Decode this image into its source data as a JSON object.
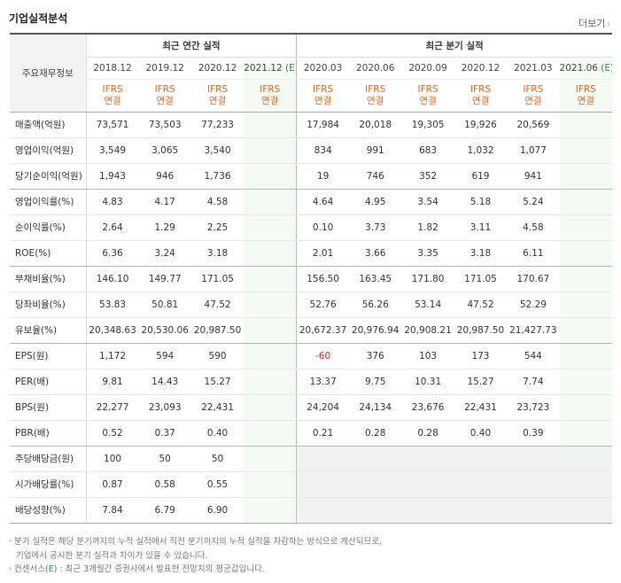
{
  "title": "기업실적분석",
  "more_label": "더보기",
  "more_chevron": "›",
  "header": {
    "row_label": "주요재무정보",
    "annual_group": "최근 연간 실적",
    "quarter_group": "최근 분기 실적",
    "annual_periods": [
      "2018.12",
      "2019.12",
      "2020.12",
      "2021.12"
    ],
    "quarter_periods": [
      "2020.03",
      "2020.06",
      "2020.09",
      "2020.12",
      "2021.03",
      "2021.06"
    ],
    "estimate_mark": "(E)",
    "ifrs_line1": "IFRS",
    "ifrs_line2": "연결"
  },
  "rows": [
    {
      "label": "매출액(억원)",
      "annual": [
        "73,571",
        "73,503",
        "77,233",
        ""
      ],
      "quarter": [
        "17,984",
        "20,018",
        "19,305",
        "19,926",
        "20,569",
        ""
      ]
    },
    {
      "label": "영업이익(억원)",
      "annual": [
        "3,549",
        "3,065",
        "3,540",
        ""
      ],
      "quarter": [
        "834",
        "991",
        "683",
        "1,032",
        "1,077",
        ""
      ]
    },
    {
      "label": "당기순이익(억원)",
      "annual": [
        "1,943",
        "946",
        "1,736",
        ""
      ],
      "quarter": [
        "19",
        "746",
        "352",
        "619",
        "941",
        ""
      ]
    },
    {
      "label": "영업이익률(%)",
      "annual": [
        "4.83",
        "4.17",
        "4.58",
        ""
      ],
      "quarter": [
        "4.64",
        "4.95",
        "3.54",
        "5.18",
        "5.24",
        ""
      ]
    },
    {
      "label": "순이익률(%)",
      "annual": [
        "2.64",
        "1.29",
        "2.25",
        ""
      ],
      "quarter": [
        "0.10",
        "3.73",
        "1.82",
        "3.11",
        "4.58",
        ""
      ]
    },
    {
      "label": "ROE(%)",
      "annual": [
        "6.36",
        "3.24",
        "3.18",
        ""
      ],
      "quarter": [
        "2.01",
        "3.66",
        "3.35",
        "3.18",
        "6.11",
        ""
      ]
    },
    {
      "label": "부채비율(%)",
      "annual": [
        "146.10",
        "149.77",
        "171.05",
        ""
      ],
      "quarter": [
        "156.50",
        "163.45",
        "171.80",
        "171.05",
        "170.67",
        ""
      ]
    },
    {
      "label": "당좌비율(%)",
      "annual": [
        "53.83",
        "50.81",
        "47.52",
        ""
      ],
      "quarter": [
        "52.76",
        "56.26",
        "53.14",
        "47.52",
        "52.29",
        ""
      ]
    },
    {
      "label": "유보율(%)",
      "annual": [
        "20,348.63",
        "20,530.06",
        "20,987.50",
        ""
      ],
      "quarter": [
        "20,672.37",
        "20,976.94",
        "20,908.21",
        "20,987.50",
        "21,427.73",
        ""
      ]
    },
    {
      "label": "EPS(원)",
      "annual": [
        "1,172",
        "594",
        "590",
        ""
      ],
      "quarter": [
        "-60",
        "376",
        "103",
        "173",
        "544",
        ""
      ]
    },
    {
      "label": "PER(배)",
      "annual": [
        "9.81",
        "14.43",
        "15.27",
        ""
      ],
      "quarter": [
        "13.37",
        "9.75",
        "10.31",
        "15.27",
        "7.74",
        ""
      ]
    },
    {
      "label": "BPS(원)",
      "annual": [
        "22,277",
        "23,093",
        "22,431",
        ""
      ],
      "quarter": [
        "24,204",
        "24,134",
        "23,676",
        "22,431",
        "23,723",
        ""
      ]
    },
    {
      "label": "PBR(배)",
      "annual": [
        "0.52",
        "0.37",
        "0.40",
        ""
      ],
      "quarter": [
        "0.21",
        "0.28",
        "0.28",
        "0.40",
        "0.39",
        ""
      ]
    },
    {
      "label": "주당배당금(원)",
      "annual": [
        "100",
        "50",
        "50",
        ""
      ],
      "quarter": [
        "",
        "",
        "",
        "",
        "",
        ""
      ]
    },
    {
      "label": "시가배당률(%)",
      "annual": [
        "0.87",
        "0.58",
        "0.55",
        ""
      ],
      "quarter": [
        "",
        "",
        "",
        "",
        "",
        ""
      ]
    },
    {
      "label": "배당성향(%)",
      "annual": [
        "7.84",
        "6.79",
        "6.90",
        ""
      ],
      "quarter": [
        "",
        "",
        "",
        "",
        "",
        ""
      ]
    }
  ],
  "notes": {
    "line1": "· 분기 실적은 해당 분기까지의 누적 실적에서 직전 분기까지의 누적 실적을 차감하는 방식으로 계산되므로,",
    "line2": "기업에서 공시한 분기 실적과 차이가 있을 수 있습니다.",
    "line3_prefix": "· 컨센서스",
    "line3_mark": "(E)",
    "line3_suffix": " : 최근 3개월간 증권사에서 발표한 전망치의 평균값입니다."
  },
  "colors": {
    "ifrs": "#e0661c",
    "estimate": "#2e8b57",
    "negative": "#e2171b",
    "estimate_bg": "#f4faf4",
    "empty_bg": "#f2f2f2"
  }
}
